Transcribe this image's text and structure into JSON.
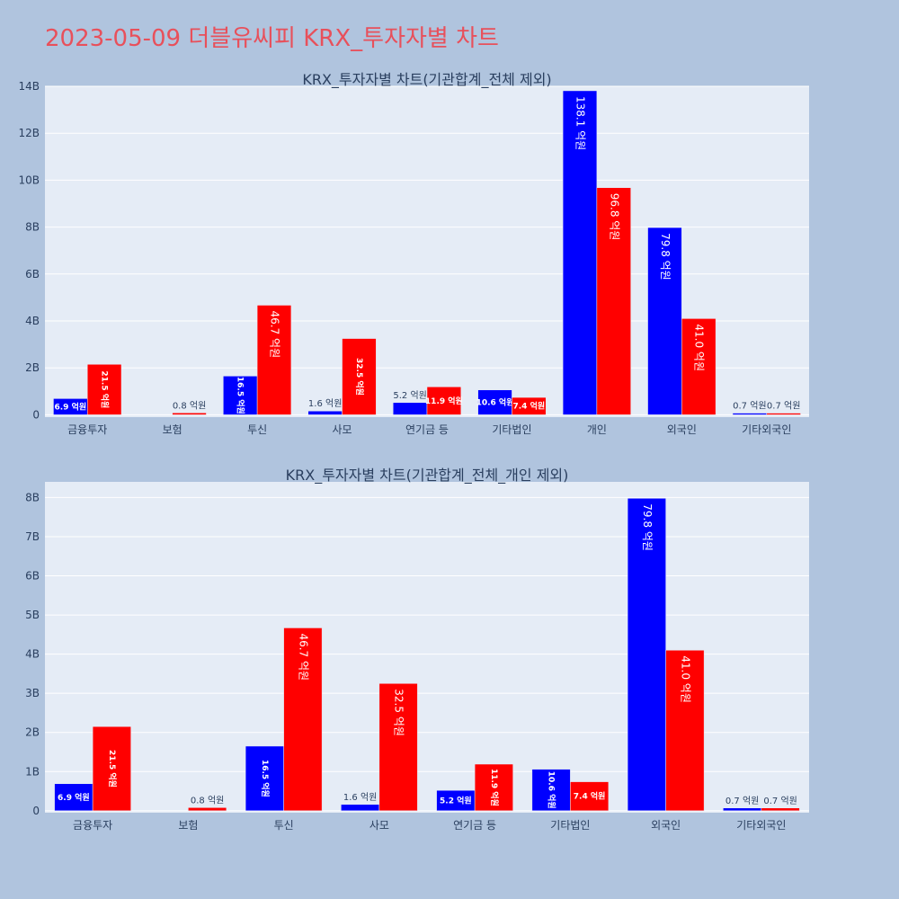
{
  "page": {
    "title": "2023-05-09 더블유씨피 KRX_투자자별 차트",
    "title_color": "#e8505b",
    "background": "#b0c4de",
    "plot_background": "#e5ecf6"
  },
  "chart_data": [
    {
      "type": "bar",
      "title": "KRX_투자자별 차트(기관합계_전체 제외)",
      "categories": [
        "금융투자",
        "보험",
        "투신",
        "사모",
        "연기금 등",
        "기타법인",
        "개인",
        "외국인",
        "기타외국인"
      ],
      "series": [
        {
          "color": "#0000ff",
          "values": [
            0.69,
            0.0,
            1.65,
            0.16,
            0.52,
            1.06,
            13.81,
            7.98,
            0.07
          ],
          "labels": [
            "6.9 억원",
            "",
            "16.5 억원",
            "1.6 억원",
            "5.2 억원",
            "10.6 억원",
            "138.1 억원",
            "79.8 억원",
            "0.7 억원"
          ]
        },
        {
          "color": "#ff0000",
          "values": [
            2.15,
            0.08,
            4.67,
            3.25,
            1.19,
            0.74,
            9.68,
            4.1,
            0.07
          ],
          "labels": [
            "21.5 억원",
            "0.8 억원",
            "46.7 억원",
            "32.5 억원",
            "11.9 억원",
            "7.4 억원",
            "96.8 억원",
            "41.0 억원",
            "0.7 억원"
          ]
        }
      ],
      "y_unit": "B",
      "yticks": [
        0,
        2,
        4,
        6,
        8,
        10,
        12,
        14
      ],
      "ytick_labels": [
        "0",
        "2B",
        "4B",
        "6B",
        "8B",
        "10B",
        "12B",
        "14B"
      ],
      "ylim": [
        -0.1,
        14.0
      ],
      "grid": true
    },
    {
      "type": "bar",
      "title": "KRX_투자자별 차트(기관합계_전체_개인 제외)",
      "categories": [
        "금융투자",
        "보험",
        "투신",
        "사모",
        "연기금 등",
        "기타법인",
        "외국인",
        "기타외국인"
      ],
      "series": [
        {
          "color": "#0000ff",
          "values": [
            0.69,
            0.0,
            1.65,
            0.16,
            0.52,
            1.06,
            7.98,
            0.07
          ],
          "labels": [
            "6.9 억원",
            "",
            "16.5 억원",
            "1.6 억원",
            "5.2 억원",
            "10.6 억원",
            "79.8 억원",
            "0.7 억원"
          ]
        },
        {
          "color": "#ff0000",
          "values": [
            2.15,
            0.08,
            4.67,
            3.25,
            1.19,
            0.74,
            4.1,
            0.07
          ],
          "labels": [
            "21.5 억원",
            "0.8 억원",
            "46.7 억원",
            "32.5 억원",
            "11.9 억원",
            "7.4 억원",
            "41.0 억원",
            "0.7 억원"
          ]
        }
      ],
      "y_unit": "B",
      "yticks": [
        0,
        1,
        2,
        3,
        4,
        5,
        6,
        7,
        8
      ],
      "ytick_labels": [
        "0",
        "1B",
        "2B",
        "3B",
        "4B",
        "5B",
        "6B",
        "7B",
        "8B"
      ],
      "ylim": [
        -0.05,
        8.4
      ],
      "grid": true
    }
  ]
}
